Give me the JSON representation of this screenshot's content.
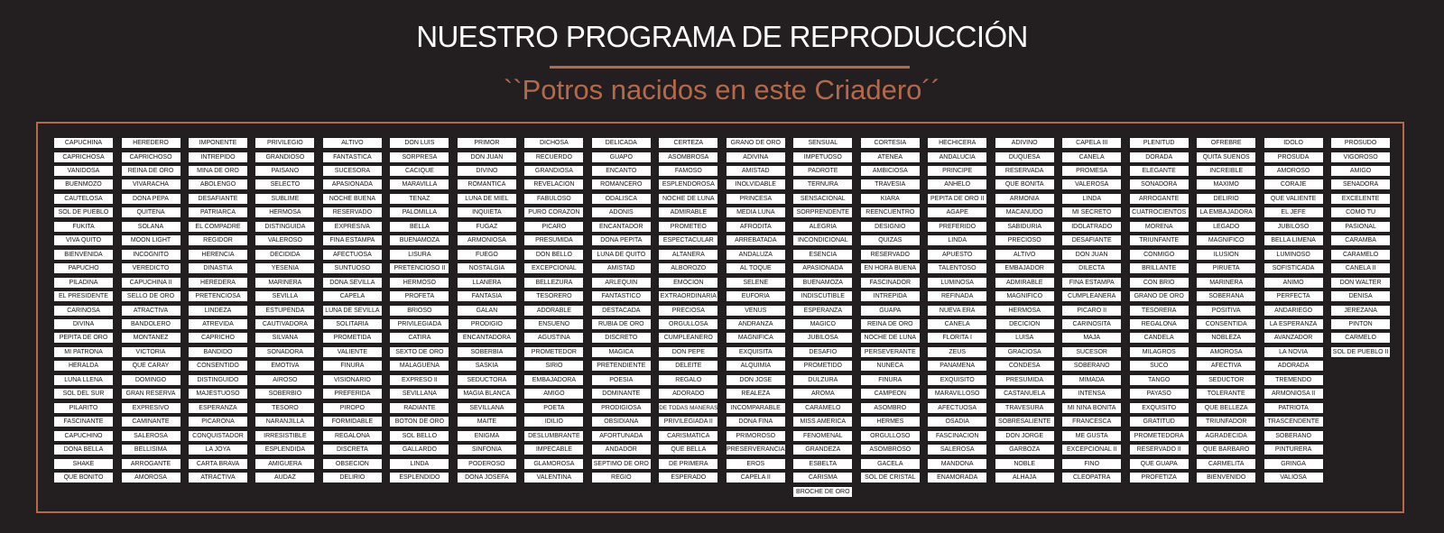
{
  "header": {
    "title": "NUESTRO PROGRAMA DE REPRODUCCIÓN",
    "subtitle": "``Potros nacidos en este Criadero´´"
  },
  "colors": {
    "background": "#231f20",
    "accent": "#b5694a",
    "tag_background": "#ffffff",
    "tag_text": "#111111"
  },
  "names": [
    [
      "CAPUCHINA",
      "CAPRICHOSA",
      "VANIDOSA",
      "BUENMOZO",
      "CAUTELOSA",
      "SOL DE PUEBLO",
      "FUKITA",
      "VIVA QUITO",
      "BIENVENIDA",
      "PAPUCHO",
      "PILADINA",
      "EL PRESIDENTE",
      "CARINOSA",
      "DIVINA",
      "PEPITA DE ORO",
      "MI PATRONA",
      "HERALDA",
      "LUNA LLENA",
      "SOL DEL SUR",
      "PILARITO",
      "FASCINANTE",
      "CAPUCHINO",
      "DONA BELLA",
      "SHAKE",
      "QUE BONITO"
    ],
    [
      "HEREDERO",
      "CAPRICHOSO",
      "REINA DE ORO",
      "VIVARACHA",
      "DONA PEPA",
      "QUITENA",
      "SOLANA",
      "MOON LIGHT",
      "INCOGNITO",
      "VEREDICTO",
      "CAPUCHINA II",
      "SELLO DE ORO",
      "ATRACTIVA",
      "BANDOLERO",
      "MONTANEZ",
      "VICTORIA",
      "QUE CARAY",
      "DOMINGO",
      "GRAN RESERVA",
      "EXPRESIVO",
      "CAMINANTE",
      "SALEROSA",
      "BELLISIMA",
      "ARROGANTE",
      "AMOROSA"
    ],
    [
      "IMPONENTE",
      "INTREPIDO",
      "MINA DE ORO",
      "ABOLENGO",
      "DESAFIANTE",
      "PATRIARCA",
      "EL COMPADRE",
      "REGIDOR",
      "HERENCIA",
      "DINASTIA",
      "HEREDERA",
      "PRETENCIOSA",
      "LINDEZA",
      "ATREVIDA",
      "CAPRICHO",
      "BANDIDO",
      "CONSENTIDO",
      "DISTINGUIDO",
      "MAJESTUOSO",
      "ESPERANZA",
      "PICARONA",
      "CONQUISTADOR",
      "LA JOYA",
      "CARTA BRAVA",
      "ATRACTIVA"
    ],
    [
      "PRIVILEGIO",
      "GRANDIOSO",
      "PAISANO",
      "SELECTO",
      "SUBLIME",
      "HERMOSA",
      "DISTINGUIDA",
      "VALEROSO",
      "DECIDIDA",
      "YESENIA",
      "MARINERA",
      "SEVILLA",
      "ESTUPENDA",
      "CAUTIVADORA",
      "SILVANA",
      "SONADORA",
      "EMOTIVA",
      "AIROSO",
      "SOBERBIO",
      "TESORO",
      "NARANJILLA",
      "IRRESISTIBLE",
      "ESPLENDIDA",
      "AMIGUERA",
      "AUDAZ"
    ],
    [
      "ALTIVO",
      "FANTASTICA",
      "SUCESORA",
      "APASIONADA",
      "NOCHE BUENA",
      "RESERVADO",
      "EXPRESIVA",
      "FINA ESTAMPA",
      "AFECTUOSA",
      "SUNTUOSO",
      "DONA SEVILLA",
      "CAPELA",
      "LUNA DE SEVILLA",
      "SOLITARIA",
      "PROMETIDA",
      "VALIENTE",
      "FINURA",
      "VISIONARIO",
      "PREFERIDA",
      "PIROPO",
      "FORMIDABLE",
      "REGALONA",
      "DISCRETA",
      "OBSECION",
      "DELIRIO"
    ],
    [
      "DON LUIS",
      "SORPRESA",
      "CACIQUE",
      "MARAVILLA",
      "TENAZ",
      "PALOMILLA",
      "BELLA",
      "BUENAMOZA",
      "LISURA",
      "PRETENCIOSO II",
      "HERMOSO",
      "PROFETA",
      "BRIOSO",
      "PRIVILEGIADA",
      "CATIRA",
      "SEXTO DE ORO",
      "MALAGUENA",
      "EXPRESO II",
      "SEVILLANA",
      "RADIANTE",
      "BOTON DE ORO",
      "SOL BELLO",
      "GALLARDO",
      "LINDA",
      "ESPLENDIDO"
    ],
    [
      "PRIMOR",
      "DON JUAN",
      "DIVINO",
      "ROMANTICA",
      "LUNA DE MIEL",
      "INQUIETA",
      "FUGAZ",
      "ARMONIOSA",
      "FUEGO",
      "NOSTALGIA",
      "LLANERA",
      "FANTASIA",
      "GALAN",
      "PRODIGIO",
      "ENCANTADORA",
      "SOBERBIA",
      "SASKIA",
      "SEDUCTORA",
      "MAGIA BLANCA",
      "SEVILLANA",
      "MAITE",
      "ENIGMA",
      "SINFONIA",
      "PODEROSO",
      "DONA JOSEFA"
    ],
    [
      "DICHOSA",
      "RECUERDO",
      "GRANDIOSA",
      "REVELACION",
      "FABULOSO",
      "PURO CORAZON",
      "PICARO",
      "PRESUMIDA",
      "DON BELLO",
      "EXCEPCIONAL",
      "BELLEZURA",
      "TESORERO",
      "ADORABLE",
      "ENSUENO",
      "AGUSTINA",
      "PROMETEDOR",
      "SIRIO",
      "EMBAJADORA",
      "AMIGO",
      "POETA",
      "IDILIO",
      "DESLUMBRANTE",
      "IMPECABLE",
      "GLAMOROSA",
      "VALENTINA"
    ],
    [
      "DELICADA",
      "GUAPO",
      "ENCANTO",
      "ROMANCERO",
      "ODALISCA",
      "ADONIS",
      "ENCANTADOR",
      "DONA PEPITA",
      "LUNA DE QUITO",
      "AMISTAD",
      "ARLEQUIN",
      "FANTASTICO",
      "DESTACADA",
      "RUBIA DE ORO",
      "DISCRETO",
      "MAGICA",
      "PRETENDIENTE",
      "POESIA",
      "DOMINANTE",
      "PRODIGIOSA",
      "OBSIDIANA",
      "AFORTUNADA",
      "ANDADOR",
      "SEPTIMO DE ORO",
      "REGIO"
    ],
    [
      "CERTEZA",
      "ASOMBROSA",
      "FAMOSO",
      "ESPLENDOROSA",
      "NOCHE DE LUNA",
      "ADMIRABLE",
      "PROMETEO",
      "ESPECTACULAR",
      "ALTANERA",
      "ALBOROZO",
      "EMOCION",
      "EXTRAORDINARIA",
      "PRECIOSA",
      "ORGULLOSA",
      "CUMPLEANERO",
      "DON PEPE",
      "DELEITE",
      "REGALO",
      "ADORADO",
      "DE TODAS MANERAS",
      "PRIVILEGIADA II",
      "CARISMATICA",
      "QUE BELLA",
      "DE PRIMERA",
      "ESPERADO"
    ],
    [
      "GRANO DE ORO",
      "ADIVINA",
      "AMISTAD",
      "INOLVIDABLE",
      "PRINCESA",
      "MEDIA LUNA",
      "AFRODITA",
      "ARREBATADA",
      "ANDALUZA",
      "AL TOQUE",
      "SELENE",
      "EUFORIA",
      "VENUS",
      "ANDRANZA",
      "MAGNIFICA",
      "EXQUISITA",
      "ALQUIMIA",
      "DON JOSE",
      "REALEZA",
      "INCOMPARABLE",
      "DONA FINA",
      "PRIMOROSO",
      "PRESERVERANCIA",
      "EROS",
      "CAPELA II"
    ],
    [
      "SENSUAL",
      "IMPETUOSO",
      "PADROTE",
      "TERNURA",
      "SENSACIONAL",
      "SORPRENDENTE",
      "ALEGRIA",
      "INCONDICIONAL",
      "ESENCIA",
      "APASIONADA",
      "BUENAMOZA",
      "INDISCUTIBLE",
      "ESPERANZA",
      "MAGICO",
      "JUBILOSA",
      "DESAFIO",
      "PROMETIDO",
      "DULZURA",
      "AROMA",
      "CARAMELO",
      "MISS AMERICA",
      "FENOMENAL",
      "GRANDEZA",
      "ESBELTA",
      "CARISMA",
      "BROCHE DE ORO"
    ],
    [
      "CORTESIA",
      "ATENEA",
      "AMBICIOSA",
      "TRAVESIA",
      "KIARA",
      "REENCUENTRO",
      "DESIGNIO",
      "QUIZAS",
      "RESERVADO",
      "EN HORA BUENA",
      "FASCINADOR",
      "INTREPIDA",
      "GUAPA",
      "REINA DE ORO",
      "NOCHE DE LUNA",
      "PERSEVERANTE",
      "NUNECA",
      "FINURA",
      "CAMPEON",
      "ASOMBRO",
      "HERMES",
      "ORGULLOSO",
      "ASOMBROSO",
      "GACELA",
      "SOL DE CRISTAL"
    ],
    [
      "HECHICERA",
      "ANDALUCIA",
      "PRINCIPE",
      "ANHELO",
      "PEPITA DE ORO II",
      "AGAPE",
      "PREFERIDO",
      "LINDA",
      "APUESTO",
      "TALENTOSO",
      "LUMINOSA",
      "REFINADA",
      "NUEVA ERA",
      "CANELA",
      "FLORITA I",
      "ZEUS",
      "PANAMENA",
      "EXQUISITO",
      "MARAVILLOSO",
      "AFECTUOSA",
      "OSADIA",
      "FASCINACION",
      "SALEROSA",
      "MANDONA",
      "ENAMORADA"
    ],
    [
      "ADIVINO",
      "DUQUESA",
      "RESERVADA",
      "QUE BONITA",
      "ARMONIA",
      "MACANUDO",
      "SABIDURIA",
      "PRECIOSO",
      "ALTIVO",
      "EMBAJADOR",
      "ADMIRABLE",
      "MAGNIFICO",
      "HERMOSA",
      "DECICION",
      "LUISA",
      "GRACIOSA",
      "CONDESA",
      "PRESUMIDA",
      "CASTANUELA",
      "TRAVESURA",
      "SOBRESALIENTE",
      "DON JORGE",
      "GARBOZA",
      "NOBLE",
      "ALHAJA"
    ],
    [
      "CAPELA III",
      "CANELA",
      "PROMESA",
      "VALEROSA",
      "LINDA",
      "MI SECRETO",
      "IDOLATRADO",
      "DESAFIANTE",
      "DON JUAN",
      "DILECTA",
      "FINA ESTAMPA",
      "CUMPLEANERA",
      "PICARO II",
      "CARINOSITA",
      "MAJA",
      "SUCESOR",
      "SOBERANO",
      "MIMADA",
      "INTENSA",
      "MI NINA BONITA",
      "FRANCESCA",
      "ME GUSTA",
      "EXCEPCIONAL II",
      "FINO",
      "CLEOPATRA"
    ],
    [
      "PLENITUD",
      "DORADA",
      "ELEGANTE",
      "SONADORA",
      "ARROGANTE",
      "CUATROCIENTOS",
      "MORENA",
      "TRIUNFANTE",
      "CONMIGO",
      "BRILLANTE",
      "CON BRIO",
      "GRANO DE ORO",
      "TESORERA",
      "REGALONA",
      "CANDELA",
      "MILAGROS",
      "SUCO",
      "TANGO",
      "PAYASO",
      "EXQUISITO",
      "GRATITUD",
      "PROMETEDORA",
      "RESERVADO II",
      "QUE GUAPA",
      "PROFETIZA"
    ],
    [
      "OFREBRE",
      "QUITA SUENOS",
      "INCREIBLE",
      "MAXIMO",
      "DELIRIO",
      "LA EMBAJADORA",
      "LEGADO",
      "MAGNIFICO",
      "ILUSION",
      "PIRUETA",
      "MARINERA",
      "SOBERANA",
      "POSITIVA",
      "CONSENTIDA",
      "NOBLEZA",
      "AMOROSA",
      "AFECTIVA",
      "SEDUCTOR",
      "TOLERANTE",
      "QUE BELLEZA",
      "TRIUNFADOR",
      "AGRADECIDA",
      "QUE BARBARO",
      "CARMELITA",
      "BIENVENIDO"
    ],
    [
      "IDOLO",
      "PROSUDA",
      "AMOROSO",
      "CORAJE",
      "QUE VALIENTE",
      "EL JEFE",
      "JUBILOSO",
      "BELLA LIMENA",
      "LUMINOSO",
      "SOFISTICADA",
      "ANIMO",
      "PERFECTA",
      "ANDARIEGO",
      "LA ESPERANZA",
      "AVANZADOR",
      "LA NOVIA",
      "ADORADA",
      "TREMENDO",
      "ARMONIOSA II",
      "PATRIOTA",
      "TRASCENDENTE",
      "SOBERANO",
      "PINTURERA",
      "GRINGA",
      "VALIOSA"
    ],
    [
      "PROSUDO",
      "VIGOROSO",
      "AMIGO",
      "SENADORA",
      "EXCELENTE",
      "COMO TU",
      "PASIONAL",
      "CARAMBA",
      "CARAMELO",
      "CANELA II",
      "DON WALTER",
      "DENISA",
      "JEREZANA",
      "PINTON",
      "CARMELO",
      "SOL DE PUEBLO II"
    ]
  ]
}
